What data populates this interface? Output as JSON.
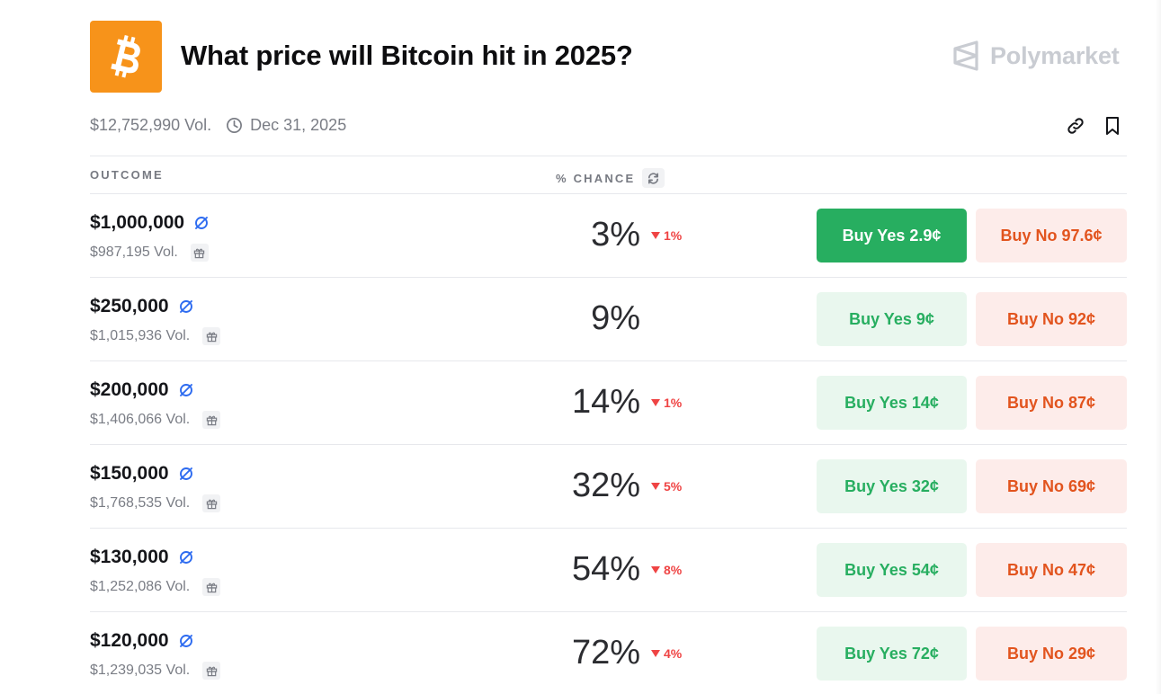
{
  "header": {
    "title": "What price will Bitcoin hit in 2025?",
    "brand": "Polymarket",
    "volume": "$12,752,990 Vol.",
    "end_date": "Dec 31, 2025",
    "logo_icon": "bitcoin-icon",
    "logo_color": "#f7931a"
  },
  "table": {
    "col_outcome": "OUTCOME",
    "col_chance": "% CHANCE"
  },
  "colors": {
    "yes": "#27ae60",
    "yes_bg": "#e9f7ee",
    "no": "#e2541e",
    "no_bg": "#fdecea",
    "down": "#ef4444"
  },
  "rows": [
    {
      "outcome": "$1,000,000",
      "volume": "$987,195 Vol.",
      "chance": "3%",
      "delta": "1%",
      "yes": "Buy Yes 2.9¢",
      "no": "Buy No 97.6¢",
      "yes_active": true
    },
    {
      "outcome": "$250,000",
      "volume": "$1,015,936 Vol.",
      "chance": "9%",
      "delta": "",
      "yes": "Buy Yes 9¢",
      "no": "Buy No 92¢",
      "yes_active": false
    },
    {
      "outcome": "$200,000",
      "volume": "$1,406,066 Vol.",
      "chance": "14%",
      "delta": "1%",
      "yes": "Buy Yes 14¢",
      "no": "Buy No 87¢",
      "yes_active": false
    },
    {
      "outcome": "$150,000",
      "volume": "$1,768,535 Vol.",
      "chance": "32%",
      "delta": "5%",
      "yes": "Buy Yes 32¢",
      "no": "Buy No 69¢",
      "yes_active": false
    },
    {
      "outcome": "$130,000",
      "volume": "$1,252,086 Vol.",
      "chance": "54%",
      "delta": "8%",
      "yes": "Buy Yes 54¢",
      "no": "Buy No 47¢",
      "yes_active": false
    },
    {
      "outcome": "$120,000",
      "volume": "$1,239,035 Vol.",
      "chance": "72%",
      "delta": "4%",
      "yes": "Buy Yes 72¢",
      "no": "Buy No 29¢",
      "yes_active": false
    }
  ]
}
